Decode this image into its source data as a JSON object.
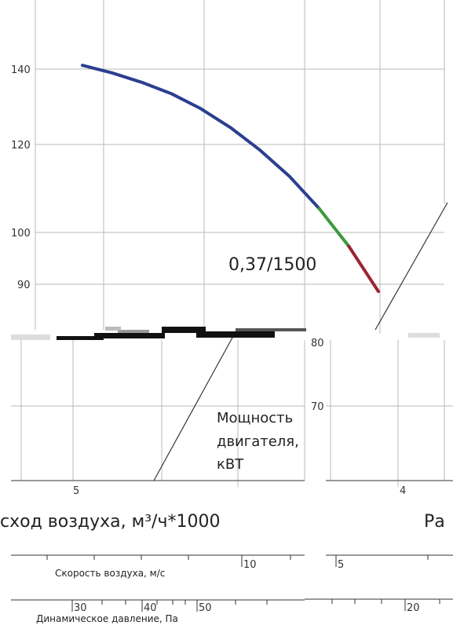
{
  "chart_data": {
    "type": "line",
    "title": "",
    "y_ticks": [
      "140",
      "120",
      "100",
      "90"
    ],
    "lower_y_ticks": [
      "80",
      "70"
    ],
    "series": [
      {
        "x": [
          0.0,
          0.5,
          1.0,
          1.5,
          2.0,
          2.5,
          3.0,
          3.5,
          4.0,
          4.5,
          5.0
        ],
        "values": [
          141,
          139,
          136.5,
          133.5,
          129.5,
          124.5,
          118.5,
          111.5,
          103,
          93,
          81
        ],
        "segment_colors": [
          "#2a3f8f",
          "#3a9a3a",
          "#9b2335"
        ]
      }
    ],
    "annotations": {
      "model_label": "0,37/1500",
      "motor_power_label": [
        "Мощность",
        "двигателя,",
        "кВТ"
      ],
      "left_x_tick": "5",
      "right_x_tick": "4",
      "flow_axis_label": "сход воздуха, м³/ч*1000",
      "flow_axis_label_right": "Ра",
      "speed_axis_label": "Скорость воздуха, м/с",
      "speed_ticks": [
        "10",
        "5"
      ],
      "pressure_axis_label": "Динамическое давление, Па",
      "pressure_ticks": [
        "30",
        "40",
        "50",
        "20"
      ]
    },
    "colors": {
      "curve_blue": "#2a3f8f",
      "curve_green": "#3a9a3a",
      "curve_red": "#9b2335",
      "grid": "#b8b8b8"
    }
  }
}
